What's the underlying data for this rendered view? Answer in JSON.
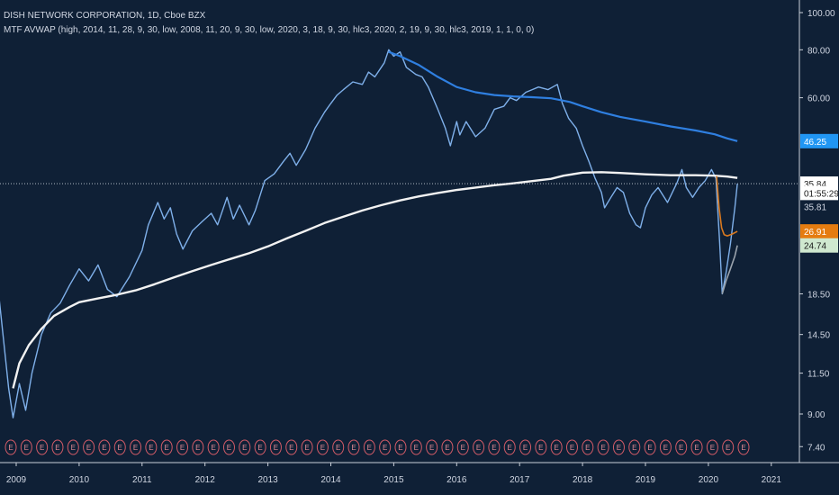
{
  "header": {
    "title": "DISH NETWORK CORPORATION, 1D, Cboe BZX",
    "indicator": "MTF AVWAP (high, 2014, 11, 28, 9, 30, low, 2008, 11, 20, 9, 30, low, 2020, 3, 18, 9, 30, hlc3, 2020, 2, 19, 9, 30, hlc3, 2019, 1, 1, 0, 0)"
  },
  "colors": {
    "background": "#0f2036",
    "price": "#7fb0ea",
    "avwap_white": "#f2f2f2",
    "avwap_blue": "#2f7fe0",
    "avwap_orange": "#d9791f",
    "avwap_gray": "#9aa3ad",
    "badge_blue": "#2196f3",
    "badge_orange": "#e57c10",
    "badge_green": "#cfe8cf",
    "earnings_marker": "#d25b67"
  },
  "chart_data": {
    "type": "line",
    "x_axis_labels": [
      "2009",
      "2010",
      "2011",
      "2012",
      "2013",
      "2014",
      "2015",
      "2016",
      "2017",
      "2018",
      "2019",
      "2020",
      "2021"
    ],
    "y_scale": "log",
    "y_ticks": [
      "100.00",
      "80.00",
      "60.00",
      "35.84",
      "35.81",
      "18.50",
      "14.50",
      "11.50",
      "9.00",
      "7.40"
    ],
    "price_labels": [
      {
        "label": "46.25",
        "value": 46.25,
        "series": "AVWAP high 2014-11-28"
      },
      {
        "label": "35.84",
        "value": 35.84,
        "series": "Last price"
      },
      {
        "label": "01:55:29",
        "value": 33.9,
        "series": "Bar countdown"
      },
      {
        "label": "35.81",
        "value": 31.2,
        "series": "AVWAP hlc3 2019-01-01"
      },
      {
        "label": "26.91",
        "value": 26.91,
        "series": "AVWAP hlc3 2020-02-19"
      },
      {
        "label": "24.74",
        "value": 24.74,
        "series": "AVWAP low 2020-03-18"
      }
    ],
    "earnings_marker_label": "E",
    "earnings_count": 48,
    "series": [
      {
        "style": "price",
        "points": [
          [
            2008.55,
            26
          ],
          [
            2008.7,
            20
          ],
          [
            2008.8,
            14
          ],
          [
            2008.88,
            10.5
          ],
          [
            2008.95,
            8.8
          ],
          [
            2009.05,
            10.8
          ],
          [
            2009.15,
            9.2
          ],
          [
            2009.25,
            11.5
          ],
          [
            2009.4,
            14.5
          ],
          [
            2009.55,
            16.5
          ],
          [
            2009.7,
            17.5
          ],
          [
            2009.85,
            19.5
          ],
          [
            2010.0,
            21.5
          ],
          [
            2010.15,
            20
          ],
          [
            2010.3,
            22
          ],
          [
            2010.45,
            19
          ],
          [
            2010.6,
            18.2
          ],
          [
            2010.8,
            20.5
          ],
          [
            2011.0,
            24
          ],
          [
            2011.1,
            28
          ],
          [
            2011.25,
            32
          ],
          [
            2011.35,
            29
          ],
          [
            2011.45,
            31
          ],
          [
            2011.55,
            26.5
          ],
          [
            2011.65,
            24.2
          ],
          [
            2011.8,
            27
          ],
          [
            2011.95,
            28.5
          ],
          [
            2012.1,
            30
          ],
          [
            2012.2,
            28
          ],
          [
            2012.35,
            33
          ],
          [
            2012.45,
            29
          ],
          [
            2012.55,
            31.5
          ],
          [
            2012.7,
            28
          ],
          [
            2012.8,
            30.5
          ],
          [
            2012.95,
            36.5
          ],
          [
            2013.1,
            38
          ],
          [
            2013.25,
            41
          ],
          [
            2013.35,
            43
          ],
          [
            2013.45,
            40
          ],
          [
            2013.6,
            44
          ],
          [
            2013.75,
            50
          ],
          [
            2013.9,
            55
          ],
          [
            2014.0,
            58
          ],
          [
            2014.1,
            61
          ],
          [
            2014.2,
            63
          ],
          [
            2014.35,
            66
          ],
          [
            2014.5,
            65
          ],
          [
            2014.6,
            70
          ],
          [
            2014.7,
            68
          ],
          [
            2014.85,
            74
          ],
          [
            2014.92,
            80
          ],
          [
            2015.0,
            77
          ],
          [
            2015.1,
            79
          ],
          [
            2015.2,
            72
          ],
          [
            2015.35,
            69
          ],
          [
            2015.45,
            68
          ],
          [
            2015.55,
            64
          ],
          [
            2015.7,
            56
          ],
          [
            2015.82,
            50
          ],
          [
            2015.9,
            45
          ],
          [
            2016.0,
            52
          ],
          [
            2016.05,
            48
          ],
          [
            2016.15,
            52
          ],
          [
            2016.3,
            47.5
          ],
          [
            2016.45,
            50
          ],
          [
            2016.6,
            56
          ],
          [
            2016.75,
            57
          ],
          [
            2016.85,
            60
          ],
          [
            2016.95,
            59
          ],
          [
            2017.1,
            62
          ],
          [
            2017.2,
            63
          ],
          [
            2017.3,
            64
          ],
          [
            2017.45,
            63
          ],
          [
            2017.6,
            65
          ],
          [
            2017.68,
            58
          ],
          [
            2017.78,
            53
          ],
          [
            2017.9,
            50
          ],
          [
            2018.0,
            45
          ],
          [
            2018.1,
            41
          ],
          [
            2018.2,
            37
          ],
          [
            2018.3,
            34
          ],
          [
            2018.35,
            31
          ],
          [
            2018.45,
            33
          ],
          [
            2018.55,
            35
          ],
          [
            2018.65,
            34
          ],
          [
            2018.75,
            30
          ],
          [
            2018.85,
            28
          ],
          [
            2018.92,
            27.5
          ],
          [
            2019.0,
            31
          ],
          [
            2019.1,
            33.5
          ],
          [
            2019.2,
            35
          ],
          [
            2019.35,
            32
          ],
          [
            2019.5,
            36
          ],
          [
            2019.58,
            39
          ],
          [
            2019.65,
            35
          ],
          [
            2019.75,
            33
          ],
          [
            2019.85,
            35
          ],
          [
            2019.95,
            36.5
          ],
          [
            2020.05,
            39
          ],
          [
            2020.12,
            37
          ],
          [
            2020.18,
            25
          ],
          [
            2020.22,
            18.5
          ],
          [
            2020.28,
            21
          ],
          [
            2020.35,
            25
          ],
          [
            2020.42,
            31
          ],
          [
            2020.46,
            35.84
          ]
        ]
      },
      {
        "style": "avwap_white",
        "points": [
          [
            2008.95,
            10.5
          ],
          [
            2009.05,
            12.2
          ],
          [
            2009.2,
            13.6
          ],
          [
            2009.4,
            15.0
          ],
          [
            2009.6,
            16.2
          ],
          [
            2009.85,
            17.1
          ],
          [
            2010.0,
            17.6
          ],
          [
            2010.3,
            18.0
          ],
          [
            2010.6,
            18.4
          ],
          [
            2010.9,
            18.9
          ],
          [
            2011.2,
            19.6
          ],
          [
            2011.5,
            20.4
          ],
          [
            2011.8,
            21.2
          ],
          [
            2012.1,
            22.0
          ],
          [
            2012.4,
            22.8
          ],
          [
            2012.7,
            23.6
          ],
          [
            2013.0,
            24.6
          ],
          [
            2013.3,
            25.8
          ],
          [
            2013.6,
            27.0
          ],
          [
            2013.9,
            28.3
          ],
          [
            2014.2,
            29.4
          ],
          [
            2014.5,
            30.5
          ],
          [
            2014.8,
            31.5
          ],
          [
            2015.1,
            32.4
          ],
          [
            2015.4,
            33.2
          ],
          [
            2015.7,
            33.9
          ],
          [
            2016.0,
            34.5
          ],
          [
            2016.3,
            35.0
          ],
          [
            2016.6,
            35.5
          ],
          [
            2016.9,
            35.9
          ],
          [
            2017.2,
            36.4
          ],
          [
            2017.5,
            36.9
          ],
          [
            2017.7,
            37.6
          ],
          [
            2018.0,
            38.3
          ],
          [
            2018.3,
            38.4
          ],
          [
            2018.6,
            38.2
          ],
          [
            2019.0,
            37.9
          ],
          [
            2019.4,
            37.7
          ],
          [
            2019.8,
            37.7
          ],
          [
            2020.1,
            37.6
          ],
          [
            2020.3,
            37.4
          ],
          [
            2020.46,
            37.1
          ]
        ]
      },
      {
        "style": "avwap_blue",
        "points": [
          [
            2014.92,
            79
          ],
          [
            2015.1,
            77
          ],
          [
            2015.4,
            73
          ],
          [
            2015.7,
            68
          ],
          [
            2016.0,
            64
          ],
          [
            2016.3,
            62
          ],
          [
            2016.6,
            61
          ],
          [
            2016.9,
            60.5
          ],
          [
            2017.2,
            60.2
          ],
          [
            2017.5,
            59.8
          ],
          [
            2017.8,
            58.5
          ],
          [
            2018.0,
            57
          ],
          [
            2018.3,
            55
          ],
          [
            2018.6,
            53.5
          ],
          [
            2019.0,
            52
          ],
          [
            2019.4,
            50.5
          ],
          [
            2019.8,
            49.3
          ],
          [
            2020.1,
            48.2
          ],
          [
            2020.3,
            47
          ],
          [
            2020.46,
            46.25
          ]
        ]
      },
      {
        "style": "avwap_orange",
        "points": [
          [
            2020.13,
            37.5
          ],
          [
            2020.17,
            31
          ],
          [
            2020.21,
            27.5
          ],
          [
            2020.25,
            26.4
          ],
          [
            2020.3,
            26.2
          ],
          [
            2020.38,
            26.5
          ],
          [
            2020.46,
            26.91
          ]
        ]
      },
      {
        "style": "avwap_gray",
        "points": [
          [
            2020.22,
            18.5
          ],
          [
            2020.28,
            20
          ],
          [
            2020.35,
            21.5
          ],
          [
            2020.42,
            23.2
          ],
          [
            2020.46,
            24.74
          ]
        ]
      }
    ]
  }
}
